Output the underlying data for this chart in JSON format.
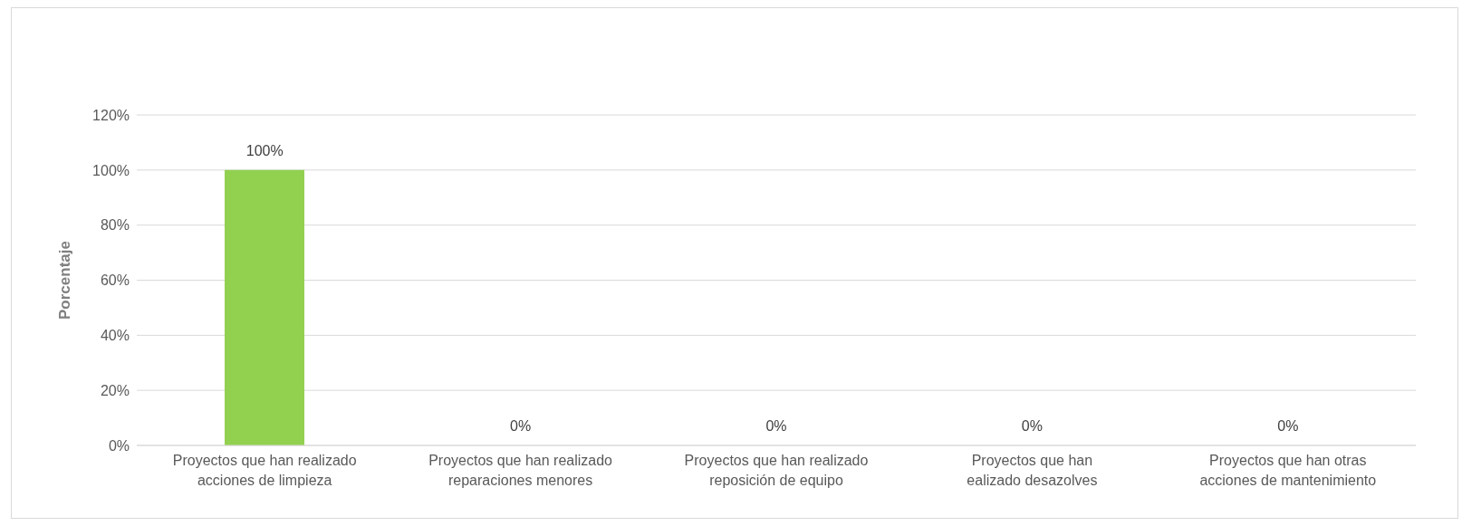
{
  "chart_data": {
    "type": "bar",
    "ylabel": "Porcentaje",
    "categories": [
      "Proyectos que han realizado\nacciones de limpieza",
      "Proyectos que han realizado\nreparaciones menores",
      "Proyectos que han realizado\nreposición de equipo",
      "Proyectos que han\nealizado desazolves",
      "Proyectos que han otras\nacciones de mantenimiento"
    ],
    "values": [
      100,
      0,
      0,
      0,
      0
    ],
    "color": "#92d050",
    "value_labels": [
      "100%",
      "0%",
      "0%",
      "0%",
      "0%"
    ],
    "ylim": [
      0,
      120
    ],
    "yticks": [
      {
        "value": 0,
        "label": "0%"
      },
      {
        "value": 20,
        "label": "20%"
      },
      {
        "value": 40,
        "label": "40%"
      },
      {
        "value": 60,
        "label": "60%"
      },
      {
        "value": 80,
        "label": "80%"
      },
      {
        "value": 100,
        "label": "100%"
      },
      {
        "value": 120,
        "label": "120%"
      }
    ],
    "grid": "y",
    "legend": false
  }
}
